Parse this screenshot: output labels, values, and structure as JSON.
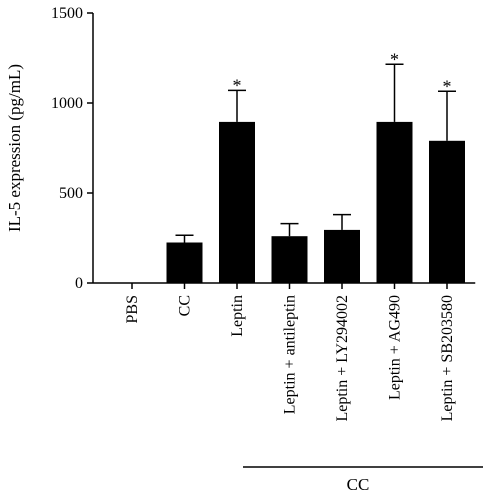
{
  "chart_data": {
    "type": "bar",
    "categories": [
      "PBS",
      "CC",
      "Leptin",
      "Leptin + antileptin",
      "Leptin + LY294002",
      "Leptin + AG490",
      "Leptin + SB203580"
    ],
    "values": [
      0,
      225,
      895,
      260,
      295,
      895,
      790
    ],
    "error_upper": [
      0,
      265,
      1070,
      330,
      380,
      1215,
      1065
    ],
    "significance": [
      "",
      "",
      "*",
      "",
      "",
      "*",
      "*"
    ],
    "ylabel": "IL-5 expression (pg/mL)",
    "ylim": [
      0,
      1500
    ],
    "yticks": [
      0,
      500,
      1000,
      1500
    ],
    "group_label": "CC",
    "grid": false,
    "colors": {
      "bar": "#000000",
      "axis": "#000000"
    }
  }
}
